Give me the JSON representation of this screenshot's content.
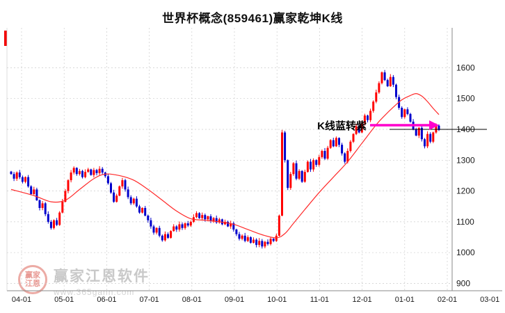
{
  "title": "世界杯概念(859461)赢家乾坤K线",
  "watermark": {
    "logo_text": "赢家江恩",
    "name": "赢家江恩软件",
    "url": "www.365gann.com"
  },
  "chart_data": {
    "type": "candlestick",
    "title": "世界杯概念(859461)赢家乾坤K线",
    "x_ticks": [
      "04-01",
      "05-01",
      "06-01",
      "07-01",
      "08-01",
      "09-01",
      "10-01",
      "11-01",
      "12-01",
      "01-01",
      "02-01",
      "03-01"
    ],
    "y_ticks": [
      900,
      1000,
      1100,
      1200,
      1300,
      1400,
      1500,
      1600
    ],
    "ylim": [
      880,
      1730
    ],
    "grid": true,
    "legend_position": "none",
    "colors": {
      "up": "#ff0000",
      "down": "#0000cc",
      "ma": "#ff2a2a",
      "grid": "#cccccc",
      "axis": "#888888",
      "annotation_arrow": "#ff00cc",
      "price_line": "#000000"
    },
    "annotation": {
      "text": "K线蓝转紫",
      "value": 1400
    },
    "price_line_value": 1400,
    "closes": [
      1255,
      1240,
      1260,
      1245,
      1230,
      1245,
      1215,
      1190,
      1205,
      1170,
      1145,
      1160,
      1125,
      1100,
      1080,
      1105,
      1090,
      1130,
      1165,
      1200,
      1235,
      1260,
      1275,
      1255,
      1265,
      1245,
      1262,
      1270,
      1252,
      1268,
      1258,
      1272,
      1260,
      1248,
      1225,
      1195,
      1165,
      1185,
      1215,
      1235,
      1205,
      1180,
      1160,
      1175,
      1150,
      1130,
      1145,
      1120,
      1105,
      1085,
      1065,
      1080,
      1055,
      1040,
      1060,
      1048,
      1070,
      1085,
      1075,
      1092,
      1080,
      1095,
      1088,
      1100,
      1115,
      1128,
      1112,
      1122,
      1108,
      1118,
      1102,
      1112,
      1098,
      1108,
      1092,
      1100,
      1085,
      1095,
      1075,
      1060,
      1045,
      1055,
      1038,
      1050,
      1032,
      1042,
      1025,
      1038,
      1020,
      1035,
      1028,
      1045,
      1038,
      1055,
      1120,
      1390,
      1300,
      1210,
      1255,
      1290,
      1240,
      1265,
      1230,
      1262,
      1295,
      1270,
      1300,
      1285,
      1310,
      1330,
      1305,
      1340,
      1365,
      1345,
      1372,
      1350,
      1322,
      1295,
      1330,
      1360,
      1385,
      1410,
      1390,
      1420,
      1445,
      1430,
      1460,
      1490,
      1520,
      1550,
      1585,
      1560,
      1540,
      1570,
      1545,
      1505,
      1470,
      1440,
      1465,
      1450,
      1425,
      1400,
      1380,
      1405,
      1368,
      1345,
      1385,
      1360,
      1390,
      1412,
      1398
    ],
    "ma": [
      [
        0,
        1205
      ],
      [
        8,
        1185
      ],
      [
        14,
        1165
      ],
      [
        19,
        1170
      ],
      [
        24,
        1205
      ],
      [
        29,
        1240
      ],
      [
        33,
        1255
      ],
      [
        38,
        1250
      ],
      [
        43,
        1235
      ],
      [
        48,
        1205
      ],
      [
        53,
        1170
      ],
      [
        58,
        1135
      ],
      [
        63,
        1110
      ],
      [
        68,
        1105
      ],
      [
        73,
        1100
      ],
      [
        78,
        1092
      ],
      [
        83,
        1075
      ],
      [
        88,
        1058
      ],
      [
        93,
        1048
      ],
      [
        96,
        1062
      ],
      [
        99,
        1095
      ],
      [
        103,
        1140
      ],
      [
        108,
        1195
      ],
      [
        113,
        1245
      ],
      [
        118,
        1295
      ],
      [
        123,
        1355
      ],
      [
        128,
        1415
      ],
      [
        131,
        1445
      ],
      [
        134,
        1472
      ],
      [
        137,
        1496
      ],
      [
        140,
        1510
      ],
      [
        142,
        1516
      ],
      [
        144,
        1508
      ],
      [
        146,
        1490
      ],
      [
        148,
        1468
      ],
      [
        150,
        1448
      ]
    ]
  }
}
